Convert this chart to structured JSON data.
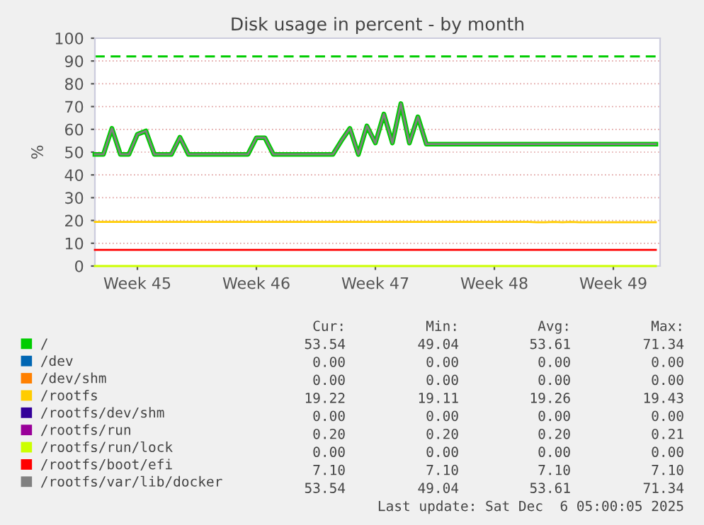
{
  "chart_data": {
    "type": "line",
    "title": "Disk usage in percent - by month",
    "ylabel": "%",
    "categories": [
      null,
      null,
      null,
      null,
      null,
      "Week 45",
      null,
      null,
      null,
      null,
      null,
      null,
      null,
      null,
      null,
      null,
      null,
      null,
      null,
      "Week 46",
      null,
      null,
      null,
      null,
      null,
      null,
      null,
      null,
      null,
      null,
      null,
      null,
      null,
      "Week 47",
      null,
      null,
      null,
      null,
      null,
      null,
      null,
      null,
      null,
      null,
      null,
      null,
      null,
      "Week 48",
      null,
      null,
      null,
      null,
      null,
      null,
      null,
      null,
      null,
      null,
      null,
      null,
      null,
      "Week 49",
      null,
      null,
      null,
      null,
      null
    ],
    "ylim": [
      0,
      100
    ],
    "yticks": [
      0,
      10,
      20,
      30,
      40,
      50,
      60,
      70,
      80,
      90,
      100
    ],
    "grid": "y",
    "legend": "bottom",
    "ref_lines": [
      {
        "axis": "y",
        "value": 92,
        "label": null,
        "color": "#00cc00",
        "line_style": "dashed"
      }
    ],
    "series": [
      {
        "name": "/",
        "color": "#00cc00",
        "values": [
          49,
          49,
          60.4,
          49,
          49,
          57.8,
          59.3,
          49,
          49,
          49,
          56.5,
          49,
          49,
          49,
          49,
          49,
          49,
          49,
          49,
          56.3,
          56.3,
          49,
          49,
          49,
          49,
          49,
          49,
          49,
          49,
          55,
          60.4,
          49,
          61.5,
          54,
          66.7,
          54,
          71.3,
          54,
          65.5,
          53.5,
          53.5,
          53.5,
          53.5,
          53.5,
          53.5,
          53.5,
          53.5,
          53.5,
          53.5,
          53.5,
          53.5,
          53.5,
          53.5,
          53.5,
          53.5,
          53.5,
          53.5,
          53.5,
          53.5,
          53.5,
          53.5,
          53.5,
          53.5,
          53.5,
          53.5,
          53.5,
          53.5
        ]
      },
      {
        "name": "/dev",
        "color": "#0066b3",
        "values": [
          null,
          null,
          null,
          null,
          null,
          null,
          null,
          null,
          null,
          null,
          null,
          null,
          null,
          null,
          null,
          null,
          null,
          null,
          null,
          null,
          null,
          null,
          null,
          null,
          null,
          null,
          null,
          null,
          null,
          null,
          null,
          null,
          null,
          null,
          null,
          null,
          null,
          null,
          null,
          null,
          null,
          null,
          null,
          null,
          null,
          null,
          null,
          null,
          null,
          null,
          null,
          null,
          null,
          null,
          null,
          null,
          null,
          null,
          null,
          null,
          null,
          null,
          null,
          null,
          null,
          null,
          null
        ]
      },
      {
        "name": "/dev/shm",
        "color": "#ff8000",
        "values": [
          null,
          null,
          null,
          null,
          null,
          null,
          null,
          null,
          null,
          null,
          null,
          null,
          null,
          null,
          null,
          null,
          null,
          null,
          null,
          null,
          null,
          null,
          null,
          null,
          null,
          null,
          null,
          null,
          null,
          null,
          null,
          null,
          null,
          null,
          null,
          null,
          null,
          null,
          null,
          null,
          null,
          null,
          null,
          null,
          null,
          null,
          null,
          null,
          null,
          null,
          null,
          null,
          null,
          null,
          null,
          null,
          null,
          null,
          null,
          null,
          null,
          null,
          null,
          null,
          null,
          null,
          null
        ]
      },
      {
        "name": "/rootfs",
        "color": "#ffcc00",
        "values": [
          19.4,
          19.4,
          19.4,
          19.4,
          19.4,
          19.4,
          19.4,
          19.4,
          19.4,
          19.4,
          19.4,
          19.4,
          19.4,
          19.4,
          19.4,
          19.4,
          19.4,
          19.4,
          19.4,
          19.4,
          19.4,
          19.4,
          19.4,
          19.4,
          19.4,
          19.4,
          19.4,
          19.4,
          19.4,
          19.4,
          19.4,
          19.4,
          19.4,
          19.4,
          19.4,
          19.4,
          19.4,
          19.4,
          19.4,
          19.4,
          19.4,
          19.4,
          19.4,
          19.4,
          19.4,
          19.4,
          19.4,
          19.4,
          19.4,
          19.4,
          19.4,
          19.4,
          19.2,
          19.2,
          19.4,
          19.2,
          19.4,
          19.2,
          19.2,
          19.2,
          19.2,
          19.2,
          19.2,
          19.2,
          19.2,
          19.2,
          19.2
        ]
      },
      {
        "name": "/rootfs/dev/shm",
        "color": "#330099",
        "values": [
          null,
          null,
          null,
          null,
          null,
          null,
          null,
          null,
          null,
          null,
          null,
          null,
          null,
          null,
          null,
          null,
          null,
          null,
          null,
          null,
          null,
          null,
          null,
          null,
          null,
          null,
          null,
          null,
          null,
          null,
          null,
          null,
          null,
          null,
          null,
          null,
          null,
          null,
          null,
          null,
          null,
          null,
          null,
          null,
          null,
          null,
          null,
          null,
          null,
          null,
          null,
          null,
          null,
          null,
          null,
          null,
          null,
          null,
          null,
          null,
          null,
          null,
          null,
          null,
          null,
          null,
          null
        ]
      },
      {
        "name": "/rootfs/run",
        "color": "#990099",
        "values": [
          null,
          null,
          null,
          null,
          null,
          null,
          null,
          null,
          null,
          null,
          null,
          null,
          null,
          null,
          null,
          null,
          null,
          null,
          null,
          null,
          null,
          null,
          null,
          null,
          null,
          null,
          null,
          null,
          null,
          null,
          null,
          null,
          null,
          null,
          null,
          null,
          null,
          null,
          null,
          null,
          null,
          null,
          null,
          null,
          null,
          null,
          null,
          null,
          null,
          null,
          null,
          null,
          null,
          null,
          null,
          null,
          null,
          null,
          null,
          null,
          null,
          null,
          null,
          null,
          null,
          null,
          null
        ]
      },
      {
        "name": "/rootfs/run/lock",
        "color": "#ccff00",
        "values": [
          0,
          0,
          0,
          0,
          0,
          0,
          0,
          0,
          0,
          0,
          0,
          0,
          0,
          0,
          0,
          0,
          0,
          0,
          0,
          0,
          0,
          0,
          0,
          0,
          0,
          0,
          0,
          0,
          0,
          0,
          0,
          0,
          0,
          0,
          0,
          0,
          0,
          0,
          0,
          0,
          0,
          0,
          0,
          0,
          0,
          0,
          0,
          0,
          0,
          0,
          0,
          0,
          0,
          0,
          0,
          0,
          0,
          0,
          0,
          0,
          0,
          0,
          0,
          0,
          0,
          0,
          0
        ]
      },
      {
        "name": "/rootfs/boot/efi",
        "color": "#ff0000",
        "values": [
          7.1,
          7.1,
          7.1,
          7.1,
          7.1,
          7.1,
          7.1,
          7.1,
          7.1,
          7.1,
          7.1,
          7.1,
          7.1,
          7.1,
          7.1,
          7.1,
          7.1,
          7.1,
          7.1,
          7.1,
          7.1,
          7.1,
          7.1,
          7.1,
          7.1,
          7.1,
          7.1,
          7.1,
          7.1,
          7.1,
          7.1,
          7.1,
          7.1,
          7.1,
          7.1,
          7.1,
          7.1,
          7.1,
          7.1,
          7.1,
          7.1,
          7.1,
          7.1,
          7.1,
          7.1,
          7.1,
          7.1,
          7.1,
          7.1,
          7.1,
          7.1,
          7.1,
          7.1,
          7.1,
          7.1,
          7.1,
          7.1,
          7.1,
          7.1,
          7.1,
          7.1,
          7.1,
          7.1,
          7.1,
          7.1,
          7.1,
          7.1
        ]
      },
      {
        "name": "/rootfs/var/lib/docker",
        "color": "#808080",
        "values": [
          49,
          49,
          60.4,
          49,
          49,
          57.8,
          59.3,
          49,
          49,
          49,
          56.5,
          49,
          49,
          49,
          49,
          49,
          49,
          49,
          49,
          56.3,
          56.3,
          49,
          49,
          49,
          49,
          49,
          49,
          49,
          49,
          55,
          60.4,
          49,
          61.5,
          54,
          66.7,
          54,
          71.3,
          54,
          65.5,
          53.5,
          53.5,
          53.5,
          53.5,
          53.5,
          53.5,
          53.5,
          53.5,
          53.5,
          53.5,
          53.5,
          53.5,
          53.5,
          53.5,
          53.5,
          53.5,
          53.5,
          53.5,
          53.5,
          53.5,
          53.5,
          53.5,
          53.5,
          53.5,
          53.5,
          53.5,
          53.5,
          53.5
        ]
      }
    ],
    "annotations": [
      "Cur:",
      "Min:",
      "Avg:",
      "Max:",
      "53.54",
      "49.04",
      "53.61",
      "71.34",
      "0.00",
      "0.00",
      "0.00",
      "0.00",
      "0.00",
      "0.00",
      "0.00",
      "0.00",
      "19.22",
      "19.11",
      "19.26",
      "19.43",
      "0.00",
      "0.00",
      "0.00",
      "0.00",
      "0.20",
      "0.20",
      "0.20",
      "0.21",
      "0.00",
      "0.00",
      "0.00",
      "0.00",
      "7.10",
      "7.10",
      "7.10",
      "7.10",
      "53.54",
      "49.04",
      "53.61",
      "71.34",
      "Last update: Sat Dec  6 05:00:05 2025"
    ]
  }
}
